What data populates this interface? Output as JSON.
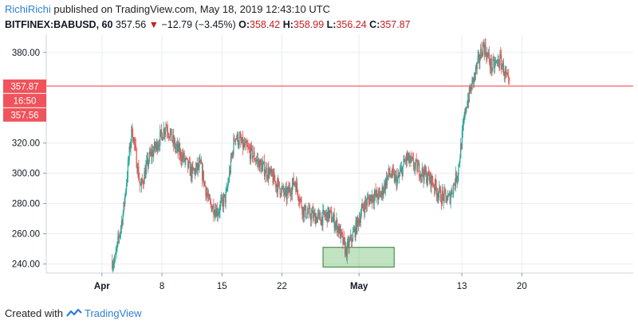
{
  "header": {
    "author": "RichiRichi",
    "published_text": "published on TradingView.com, May 18, 2019 12:43:10 UTC",
    "symbol": "BITFINEX:BABUSD, 60",
    "last": "357.56",
    "change": "−12.79 (−3.45%)",
    "o_label": "O:",
    "o_value": "358.42",
    "h_label": "H:",
    "h_value": "358.99",
    "l_label": "L:",
    "l_value": "356.24",
    "c_label": "C:",
    "c_value": "357.87"
  },
  "footer": {
    "created_with": "Created with",
    "brand": "TradingView"
  },
  "colors": {
    "up": "#26a69a",
    "down": "#ef5350",
    "price_label": "#f0535b",
    "zone_fill": "#4caf50",
    "axis_text": "#131722",
    "grid": "#e9ecf0"
  },
  "chart_data": {
    "type": "candlestick",
    "y_ticks": [
      "240.00",
      "260.00",
      "280.00",
      "300.00",
      "320.00",
      "380.00"
    ],
    "y_tick_values": [
      240,
      260,
      280,
      300,
      320,
      380
    ],
    "x_ticks": [
      "Apr",
      "8",
      "15",
      "22",
      "May",
      "13",
      "20"
    ],
    "x_tick_days": [
      0,
      7,
      14,
      21,
      30,
      42,
      49
    ],
    "ylim": [
      234,
      392
    ],
    "xlim": [
      -6.5,
      62
    ],
    "price_labels": [
      "357.87",
      "16:50",
      "357.56"
    ],
    "price_label_values": [
      357.87,
      357.56
    ],
    "highlight_zone": {
      "x0": 25.8,
      "x1": 34.1,
      "y0": 238,
      "y1": 251
    },
    "series": [
      {
        "x": [
          1.5,
          2.5,
          3.5,
          4.5,
          5.5,
          6.5,
          7.5,
          8.5,
          9.5,
          10.5,
          11.5,
          12.5,
          13.5,
          14.5,
          15.5,
          16.5,
          17.5,
          18.5,
          19.5,
          20.5,
          21.5,
          22.5,
          23.5,
          24.5,
          25.5,
          26.5,
          27.5,
          28.5,
          29.5,
          30.5,
          31.5,
          32.5,
          33.5,
          34.5,
          35.5,
          36.5,
          37.5,
          38.5,
          39.5,
          40.5,
          41.5,
          42.5,
          43.5,
          44.5,
          45.5,
          46.5,
          47.5
        ],
        "values": [
          242,
          275,
          330,
          290,
          310,
          320,
          332,
          318,
          310,
          300,
          305,
          280,
          275,
          285,
          325,
          318,
          313,
          305,
          300,
          292,
          285,
          295,
          275,
          272,
          270,
          273,
          265,
          248,
          262,
          278,
          285,
          285,
          300,
          295,
          310,
          305,
          300,
          295,
          285,
          283,
          300,
          345,
          365,
          385,
          370,
          375,
          357.6
        ]
      }
    ]
  }
}
